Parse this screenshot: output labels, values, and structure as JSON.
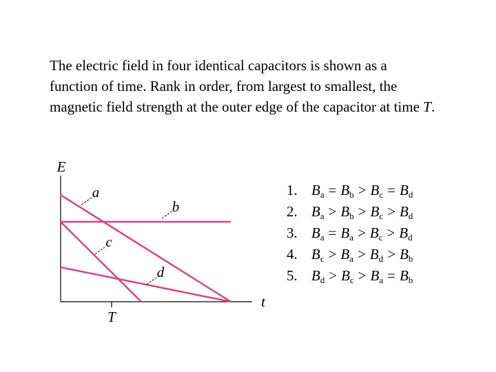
{
  "question": {
    "text": "The electric field in four identical capacitors is shown as a function of time. Rank in order, from largest to smallest, the magnetic field strength at the outer edge of the capacitor at time",
    "var": "T",
    "end": "."
  },
  "graph": {
    "y_axis": "E",
    "x_axis": "t",
    "time_mark": "T",
    "lines": [
      "a",
      "b",
      "c",
      "d"
    ]
  },
  "options": [
    {
      "num": "1.",
      "parts": [
        {
          "letter": "B",
          "sub": "a"
        },
        {
          "op": "="
        },
        {
          "letter": "B",
          "sub": "b"
        },
        {
          "op": ">"
        },
        {
          "letter": "B",
          "sub": "c"
        },
        {
          "op": "="
        },
        {
          "letter": "B",
          "sub": "d"
        }
      ]
    },
    {
      "num": "2.",
      "parts": [
        {
          "letter": "B",
          "sub": "a"
        },
        {
          "op": ">"
        },
        {
          "letter": "B",
          "sub": "b"
        },
        {
          "op": ">"
        },
        {
          "letter": "B",
          "sub": "c"
        },
        {
          "op": ">"
        },
        {
          "letter": "B",
          "sub": "d"
        }
      ]
    },
    {
      "num": "3.",
      "parts": [
        {
          "letter": "B",
          "sub": "a"
        },
        {
          "op": "="
        },
        {
          "letter": "B",
          "sub": "a"
        },
        {
          "op": ">"
        },
        {
          "letter": "B",
          "sub": "c"
        },
        {
          "op": ">"
        },
        {
          "letter": "B",
          "sub": "d"
        }
      ]
    },
    {
      "num": "4.",
      "parts": [
        {
          "letter": "B",
          "sub": "c"
        },
        {
          "op": ">"
        },
        {
          "letter": "B",
          "sub": "a"
        },
        {
          "op": ">"
        },
        {
          "letter": "B",
          "sub": "d"
        },
        {
          "op": ">"
        },
        {
          "letter": "B",
          "sub": "b"
        }
      ]
    },
    {
      "num": "5.",
      "parts": [
        {
          "letter": "B",
          "sub": "d"
        },
        {
          "op": ">"
        },
        {
          "letter": "B",
          "sub": "c"
        },
        {
          "op": ">"
        },
        {
          "letter": "B",
          "sub": "a"
        },
        {
          "op": "="
        },
        {
          "letter": "B",
          "sub": "b"
        }
      ]
    }
  ]
}
